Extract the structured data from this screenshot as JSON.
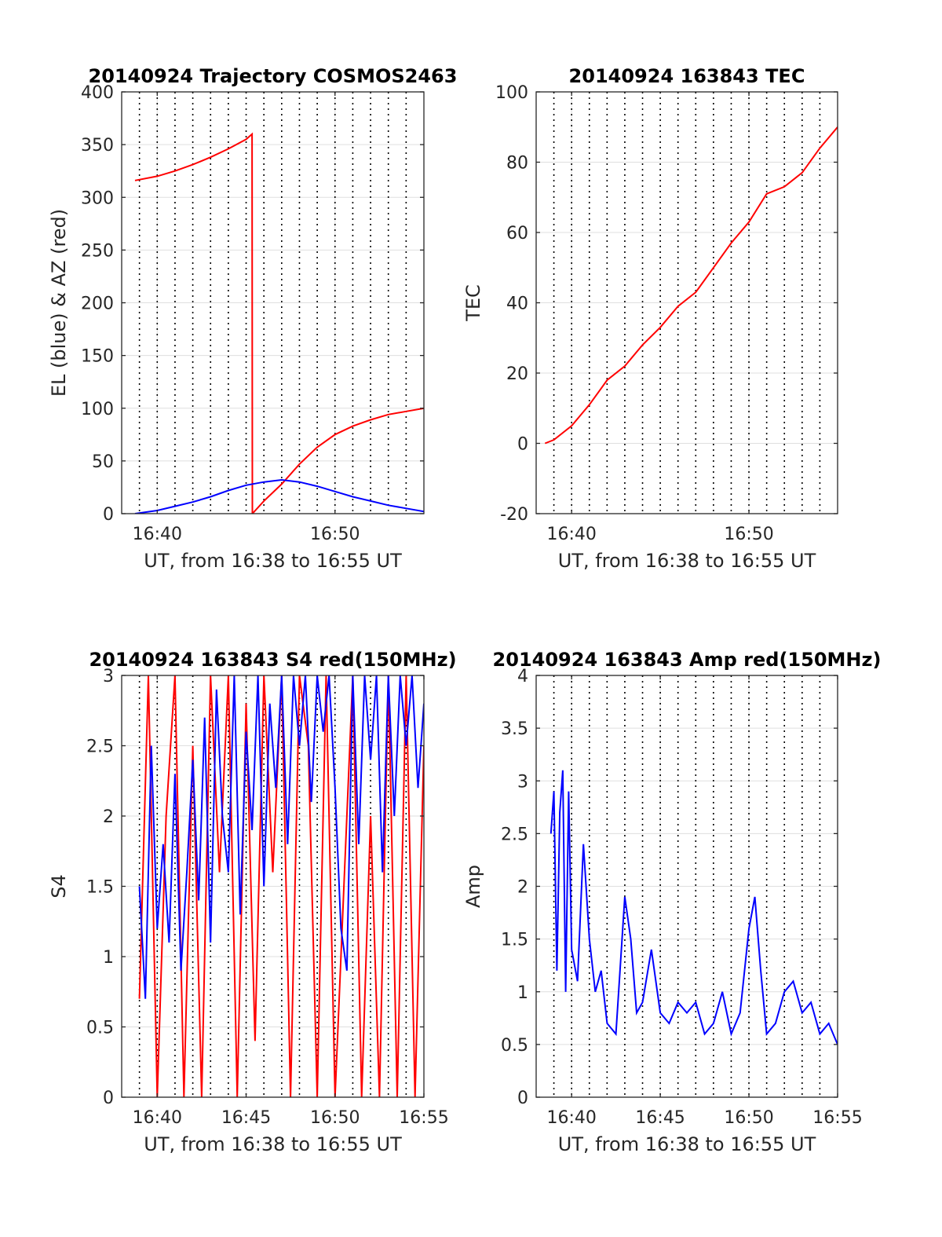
{
  "chart_data": [
    {
      "type": "line",
      "title": "20140924 Trajectory COSMOS2463",
      "xlabel": "UT, from 16:38 to 16:55 UT",
      "ylabel": "EL (blue) & AZ (red)",
      "xlim": [
        "16:38",
        "16:55"
      ],
      "ylim": [
        0,
        400
      ],
      "xticks": [
        "16:40",
        "16:50"
      ],
      "yticks": [
        "0",
        "50",
        "100",
        "150",
        "200",
        "250",
        "300",
        "350",
        "400"
      ],
      "grid": true,
      "series": [
        {
          "color": "#ff0000",
          "x": [
            "16:38:45",
            "16:40",
            "16:41",
            "16:42",
            "16:43",
            "16:44",
            "16:45",
            "16:45:20",
            "16:45:21",
            "16:46",
            "16:47",
            "16:48",
            "16:49",
            "16:50",
            "16:51",
            "16:52",
            "16:53",
            "16:54",
            "16:55"
          ],
          "values": [
            316,
            320,
            325,
            331,
            338,
            346,
            355,
            360,
            0,
            12,
            28,
            47,
            63,
            75,
            83,
            89,
            94,
            97,
            100
          ]
        },
        {
          "color": "#0000ff",
          "x": [
            "16:38:45",
            "16:40",
            "16:41",
            "16:42",
            "16:43",
            "16:44",
            "16:45",
            "16:46",
            "16:47",
            "16:48",
            "16:49",
            "16:50",
            "16:51",
            "16:52",
            "16:53",
            "16:54",
            "16:55"
          ],
          "values": [
            0,
            3,
            7,
            11,
            16,
            22,
            27,
            30,
            32,
            30,
            26,
            21,
            16,
            12,
            8,
            5,
            2
          ]
        }
      ]
    },
    {
      "type": "line",
      "title": "20140924 163843 TEC",
      "xlabel": "UT, from 16:38 to 16:55 UT",
      "ylabel": "TEC",
      "xlim": [
        "16:38",
        "16:55"
      ],
      "ylim": [
        -20,
        100
      ],
      "xticks": [
        "16:40",
        "16:50"
      ],
      "yticks": [
        "-20",
        "0",
        "20",
        "40",
        "60",
        "80",
        "100"
      ],
      "grid": true,
      "series": [
        {
          "color": "#ff0000",
          "x": [
            "16:38:30",
            "16:39",
            "16:40",
            "16:41",
            "16:42",
            "16:43",
            "16:44",
            "16:45",
            "16:46",
            "16:47",
            "16:48",
            "16:49",
            "16:50",
            "16:51",
            "16:52",
            "16:53",
            "16:54",
            "16:55"
          ],
          "values": [
            0,
            1,
            5,
            11,
            18,
            22,
            28,
            33,
            39,
            43,
            50,
            57,
            63,
            71,
            73,
            77,
            84,
            90
          ]
        }
      ]
    },
    {
      "type": "line",
      "title": "20140924 163843 S4 red(150MHz)",
      "xlabel": "UT, from 16:38 to 16:55 UT",
      "ylabel": "S4",
      "xlim": [
        "16:38",
        "16:55"
      ],
      "ylim": [
        0,
        3
      ],
      "xticks": [
        "16:40",
        "16:45",
        "16:50",
        "16:55"
      ],
      "yticks": [
        "0",
        "0.5",
        "1",
        "1.5",
        "2",
        "2.5",
        "3"
      ],
      "grid": true,
      "series": [
        {
          "color": "#ff0000",
          "x": [
            "16:39",
            "16:39:30",
            "16:40",
            "16:40:30",
            "16:41",
            "16:41:30",
            "16:42",
            "16:42:30",
            "16:43",
            "16:43:30",
            "16:44",
            "16:44:30",
            "16:45",
            "16:45:30",
            "16:46",
            "16:46:30",
            "16:47",
            "16:47:30",
            "16:48",
            "16:48:30",
            "16:49",
            "16:49:30",
            "16:50",
            "16:50:30",
            "16:51",
            "16:51:30",
            "16:52",
            "16:52:30",
            "16:53",
            "16:53:30",
            "16:54",
            "16:54:30",
            "16:55"
          ],
          "values": [
            0.7,
            3,
            0,
            2.0,
            3,
            0,
            2.5,
            0,
            3,
            1.6,
            3,
            0,
            2.8,
            0.4,
            3,
            1.6,
            3,
            0,
            3,
            2.5,
            0,
            3,
            0,
            1.5,
            3,
            0,
            2.0,
            0,
            3,
            0,
            3,
            0,
            2.5
          ]
        },
        {
          "color": "#0000ff",
          "x": [
            "16:39",
            "16:39:20",
            "16:39:40",
            "16:40",
            "16:40:20",
            "16:40:40",
            "16:41",
            "16:41:20",
            "16:41:40",
            "16:42",
            "16:42:20",
            "16:42:40",
            "16:43",
            "16:43:20",
            "16:43:40",
            "16:44",
            "16:44:20",
            "16:44:40",
            "16:45",
            "16:45:20",
            "16:45:40",
            "16:46",
            "16:46:20",
            "16:46:40",
            "16:47",
            "16:47:20",
            "16:47:40",
            "16:48",
            "16:48:20",
            "16:48:40",
            "16:49",
            "16:49:20",
            "16:49:40",
            "16:50",
            "16:50:20",
            "16:50:40",
            "16:51",
            "16:51:20",
            "16:51:40",
            "16:52",
            "16:52:20",
            "16:52:40",
            "16:53",
            "16:53:20",
            "16:53:40",
            "16:54",
            "16:54:20",
            "16:54:40",
            "16:55"
          ],
          "values": [
            1.5,
            0.7,
            2.5,
            1.2,
            1.8,
            1.1,
            2.3,
            0.9,
            1.6,
            2.4,
            1.4,
            2.7,
            1.1,
            2.9,
            2.0,
            1.6,
            3,
            1.3,
            2.6,
            1.9,
            3,
            1.5,
            2.8,
            2.2,
            3,
            1.8,
            3,
            2.5,
            3,
            2.1,
            3,
            2.6,
            3,
            2.2,
            1.2,
            0.9,
            3,
            1.8,
            3,
            2.4,
            3,
            1.6,
            3,
            2.0,
            3,
            2.5,
            3,
            2.2,
            2.8
          ]
        }
      ]
    },
    {
      "type": "line",
      "title": "20140924 163843 Amp red(150MHz)",
      "xlabel": "UT, from 16:38 to 16:55 UT",
      "ylabel": "Amp",
      "xlim": [
        "16:38",
        "16:55"
      ],
      "ylim": [
        0,
        4
      ],
      "xticks": [
        "16:40",
        "16:45",
        "16:50",
        "16:55"
      ],
      "yticks": [
        "0",
        "0.5",
        "1",
        "1.5",
        "2",
        "2.5",
        "3",
        "3.5",
        "4"
      ],
      "grid": true,
      "series": [
        {
          "color": "#0000ff",
          "x": [
            "16:38:50",
            "16:39",
            "16:39:10",
            "16:39:20",
            "16:39:30",
            "16:39:40",
            "16:39:50",
            "16:40",
            "16:40:20",
            "16:40:40",
            "16:41",
            "16:41:20",
            "16:41:40",
            "16:42",
            "16:42:30",
            "16:43",
            "16:43:20",
            "16:43:40",
            "16:44",
            "16:44:30",
            "16:45",
            "16:45:30",
            "16:46",
            "16:46:30",
            "16:47",
            "16:47:30",
            "16:48",
            "16:48:30",
            "16:49",
            "16:49:30",
            "16:50",
            "16:50:20",
            "16:50:40",
            "16:51",
            "16:51:30",
            "16:52",
            "16:52:30",
            "16:53",
            "16:53:30",
            "16:54",
            "16:54:30",
            "16:55"
          ],
          "values": [
            2.5,
            2.9,
            1.2,
            2.7,
            3.1,
            1.0,
            2.9,
            1.4,
            1.1,
            2.4,
            1.5,
            1.0,
            1.2,
            0.7,
            0.6,
            1.9,
            1.5,
            0.8,
            0.9,
            1.4,
            0.8,
            0.7,
            0.9,
            0.8,
            0.9,
            0.6,
            0.7,
            1.0,
            0.6,
            0.8,
            1.6,
            1.9,
            1.2,
            0.6,
            0.7,
            1.0,
            1.1,
            0.8,
            0.9,
            0.6,
            0.7,
            0.5
          ]
        }
      ]
    }
  ]
}
